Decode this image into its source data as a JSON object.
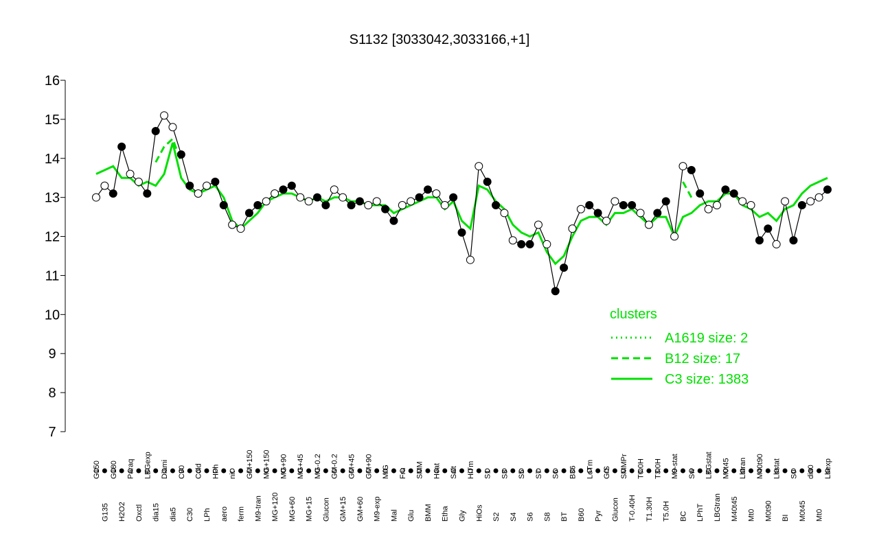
{
  "chart_data": {
    "type": "line",
    "title": "S1132 [3033042,3033166,+1]",
    "categories": [
      "G150",
      "G135",
      "G180",
      "H2O2",
      "Paraq",
      "Oxctl",
      "LBGexp",
      "dia15",
      "Diami",
      "dia5",
      "C90",
      "C30",
      "Cold",
      "LPh",
      "HPh",
      "aero",
      "nit",
      "ferm",
      "GM+150",
      "M9-tran",
      "MG+150",
      "MG+120",
      "MG+90",
      "MG+60",
      "MG+45",
      "MG+15",
      "MG-0.2",
      "Glucon",
      "GM-0.2",
      "GM+15",
      "GM+45",
      "GM+60",
      "GM+90",
      "M9-exp",
      "M/G",
      "Mal",
      "Fru",
      "Glu",
      "SMM",
      "BMM",
      "Heat",
      "Etha",
      "Salt",
      "Gly",
      "HiTm",
      "HiOs",
      "S1",
      "S2",
      "S3",
      "S4",
      "S5",
      "S6",
      "S7",
      "S8",
      "S6",
      "BT",
      "B36",
      "B60",
      "LoTm",
      "Pyr",
      "G/S",
      "Glucon",
      "SMMPr",
      "T-0.40H",
      "T0.0H",
      "T1.30H",
      "T3.0H",
      "T5.0H",
      "M9-stat",
      "BC",
      "Sw",
      "LPhT",
      "LBGstat",
      "LBGtran",
      "M0t45",
      "M40t45",
      "Lbtran",
      "Mt0",
      "M40t90",
      "M0t90",
      "Lbstat",
      "BI",
      "S0",
      "M0t45",
      "dia0",
      "Mt0",
      "Lbexp"
    ],
    "values": [
      13.0,
      13.3,
      13.1,
      14.3,
      13.6,
      13.4,
      13.1,
      14.7,
      15.1,
      14.8,
      14.1,
      13.3,
      13.1,
      13.3,
      13.4,
      12.8,
      12.3,
      12.2,
      12.6,
      12.8,
      12.9,
      13.1,
      13.2,
      13.3,
      13.0,
      12.9,
      13.0,
      12.8,
      13.2,
      13.0,
      12.8,
      12.9,
      12.8,
      12.9,
      12.7,
      12.4,
      12.8,
      12.9,
      13.0,
      13.2,
      13.1,
      12.8,
      13.0,
      12.1,
      11.4,
      13.8,
      13.4,
      12.8,
      12.6,
      11.9,
      11.8,
      11.8,
      12.3,
      11.8,
      10.6,
      11.2,
      12.2,
      12.7,
      12.8,
      12.6,
      12.4,
      12.9,
      12.8,
      12.8,
      12.6,
      12.3,
      12.6,
      12.9,
      12.0,
      13.8,
      13.7,
      13.1,
      12.7,
      12.8,
      13.2,
      13.1,
      12.9,
      12.8,
      11.9,
      12.2,
      11.8,
      12.9,
      11.9,
      12.8,
      12.9,
      13.0,
      13.2
    ],
    "series": [
      {
        "name": "A1619 size: 2",
        "color": "#00e000",
        "linestyle": "dotted",
        "values": [
          null,
          null,
          null,
          null,
          null,
          null,
          null,
          null,
          null,
          null,
          null,
          null,
          null,
          null,
          null,
          null,
          null,
          null,
          null,
          null,
          null,
          null,
          null,
          null,
          null,
          null,
          null,
          null,
          null,
          null,
          null,
          null,
          null,
          null,
          null,
          null,
          null,
          null,
          null,
          null,
          null,
          null,
          null,
          null,
          null,
          null,
          null,
          null,
          null,
          null,
          null,
          null,
          null,
          null,
          null,
          null,
          null,
          null,
          null,
          null,
          null,
          null,
          null,
          null,
          null,
          null,
          null,
          null,
          null,
          null,
          null,
          null,
          null,
          null,
          null,
          null,
          null,
          null,
          null,
          null,
          null,
          null,
          null,
          null,
          null,
          null,
          null
        ]
      },
      {
        "name": "B12 size: 17",
        "color": "#00e000",
        "linestyle": "dashed",
        "values": [
          null,
          null,
          null,
          null,
          null,
          null,
          null,
          13.9,
          14.3,
          14.5,
          13.9,
          null,
          null,
          null,
          null,
          null,
          null,
          null,
          null,
          null,
          null,
          null,
          null,
          null,
          null,
          null,
          null,
          null,
          null,
          null,
          null,
          null,
          null,
          null,
          null,
          null,
          null,
          null,
          null,
          null,
          null,
          null,
          null,
          null,
          null,
          null,
          null,
          null,
          null,
          null,
          null,
          null,
          null,
          null,
          null,
          null,
          null,
          null,
          null,
          null,
          null,
          null,
          null,
          null,
          null,
          null,
          null,
          null,
          null,
          13.4,
          13.0,
          null,
          null,
          null,
          null,
          null,
          null,
          null,
          null,
          null,
          null,
          null,
          null,
          null,
          null,
          null,
          null
        ]
      },
      {
        "name": "C3 size: 1383",
        "color": "#00e000",
        "linestyle": "solid",
        "values": [
          13.6,
          13.7,
          13.8,
          13.5,
          13.5,
          13.3,
          13.4,
          13.3,
          13.6,
          14.4,
          13.5,
          13.2,
          13.1,
          13.2,
          13.3,
          13.0,
          12.4,
          12.2,
          12.4,
          12.6,
          12.9,
          13.0,
          13.1,
          13.1,
          13.0,
          12.9,
          13.0,
          12.9,
          13.0,
          13.0,
          12.9,
          12.9,
          12.8,
          12.8,
          12.8,
          12.6,
          12.7,
          12.8,
          12.9,
          13.0,
          13.0,
          12.7,
          12.9,
          12.4,
          12.2,
          13.3,
          13.2,
          12.9,
          12.7,
          12.3,
          12.1,
          12.0,
          12.1,
          11.6,
          11.3,
          11.5,
          12.0,
          12.4,
          12.5,
          12.5,
          12.3,
          12.6,
          12.6,
          12.7,
          12.5,
          12.3,
          12.5,
          12.5,
          12.0,
          12.5,
          12.6,
          12.8,
          12.9,
          12.9,
          13.1,
          13.1,
          12.8,
          12.7,
          12.5,
          12.6,
          12.4,
          12.7,
          12.8,
          13.1,
          13.3,
          13.4,
          13.5
        ]
      }
    ],
    "ylim": [
      7,
      16
    ],
    "yticks": [
      7,
      8,
      9,
      10,
      11,
      12,
      13,
      14,
      15,
      16
    ],
    "legend_title": "clusters",
    "legend": "right"
  }
}
